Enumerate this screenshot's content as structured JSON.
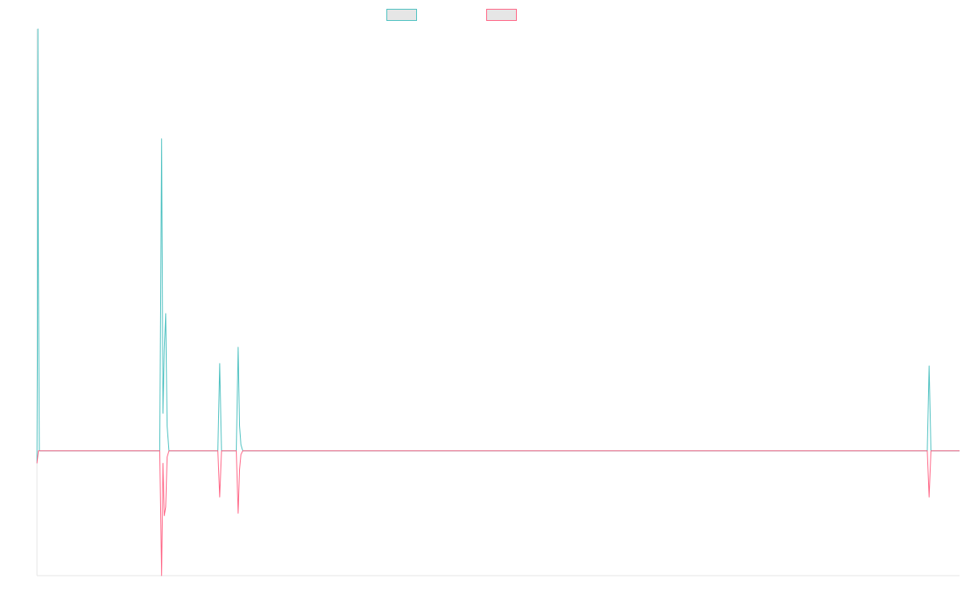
{
  "chart_data": {
    "type": "line",
    "title": "",
    "xlabel": "",
    "ylabel": "",
    "grid": false,
    "legend_position": "top-center",
    "x_range": [
      0,
      1000
    ],
    "y_range": [
      -1,
      3.38
    ],
    "baseline_value": 0,
    "series": [
      {
        "name": "",
        "color": "#4bc0c0",
        "points": [
          [
            0,
            -0.1
          ],
          [
            0.5,
            0.8
          ],
          [
            1,
            3.38
          ],
          [
            1.5,
            1.5
          ],
          [
            2.5,
            0
          ],
          [
            133,
            0
          ],
          [
            135,
            2.5
          ],
          [
            136.5,
            0.3
          ],
          [
            138,
            0.8
          ],
          [
            139.5,
            1.1
          ],
          [
            141,
            0.2
          ],
          [
            143,
            0
          ],
          [
            196,
            0
          ],
          [
            198,
            0.7
          ],
          [
            200,
            0
          ],
          [
            216,
            0
          ],
          [
            218,
            0.83
          ],
          [
            219.5,
            0.2
          ],
          [
            221,
            0.05
          ],
          [
            223,
            0
          ],
          [
            965,
            0
          ],
          [
            967,
            0.68
          ],
          [
            969,
            0
          ],
          [
            1000,
            0
          ]
        ]
      },
      {
        "name": "",
        "color": "#ff6384",
        "points": [
          [
            0,
            -0.1
          ],
          [
            1.5,
            0
          ],
          [
            2.5,
            0
          ],
          [
            133,
            0
          ],
          [
            135,
            -1.0
          ],
          [
            136.5,
            -0.1
          ],
          [
            138,
            -0.52
          ],
          [
            139.5,
            -0.45
          ],
          [
            141,
            -0.05
          ],
          [
            143,
            0
          ],
          [
            196,
            0
          ],
          [
            198,
            -0.37
          ],
          [
            200,
            0
          ],
          [
            216,
            0
          ],
          [
            218,
            -0.5
          ],
          [
            219.5,
            -0.15
          ],
          [
            221,
            -0.03
          ],
          [
            223,
            0
          ],
          [
            965,
            0
          ],
          [
            967,
            -0.37
          ],
          [
            969,
            0
          ],
          [
            1000,
            0
          ]
        ]
      }
    ]
  }
}
